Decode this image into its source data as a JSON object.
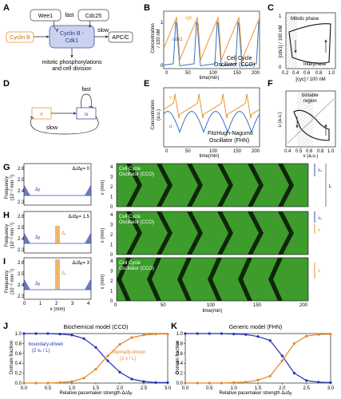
{
  "figure": {
    "panel_letters": [
      "A",
      "B",
      "C",
      "D",
      "E",
      "F",
      "G",
      "H",
      "I",
      "J",
      "K"
    ],
    "A": {
      "wee1": "Wee1",
      "cdc25": "Cdc25",
      "fast": "fast",
      "slow": "slow",
      "cyclin_b": "Cyclin B",
      "complex_line1": "Cyclin B -",
      "complex_line2": "Cdk1",
      "apcc": "APC/C",
      "outcome_line1": "mitotic phosphorylations",
      "outcome_line2": "and cell division"
    },
    "B": {
      "ylabel_line1": "Concentration",
      "ylabel_line2": "/ 100 nM",
      "xlabel": "time(min)",
      "series_cyc": "cyc",
      "series_cdk": "cdk1",
      "model_line1": "Cell Cycle",
      "model_line2": "Oscillator (CCO)",
      "xticks": [
        "0",
        "50",
        "100",
        "150",
        "200"
      ],
      "yticks": [
        "0",
        "1"
      ]
    },
    "C": {
      "ylabel": "[cdk1] / 100 nM",
      "xlabel": "[cyc] / 100 nM",
      "mitotic": "Mitotic phase",
      "interphase": "Interphase",
      "xticks": [
        "0.2",
        "0.4",
        "0.6",
        "0.8",
        "1.0"
      ],
      "yticks": [
        "0",
        "1"
      ]
    },
    "D": {
      "v": "v",
      "u": "u",
      "fast": "fast",
      "slow": "slow"
    },
    "E": {
      "ylabel_line1": "Concentration",
      "ylabel_line2": "(a.u.)",
      "xlabel": "time(min)",
      "series_v": "v",
      "series_u": "u",
      "model_line1": "FitzHugh-Nagumo",
      "model_line2": "Oscillator (FHN)",
      "xticks": [
        "0",
        "50",
        "100",
        "150",
        "200"
      ]
    },
    "F": {
      "ylabel": "u (a.u.)",
      "xlabel": "v (a.u.)",
      "region_line1": "bistable",
      "region_line2": "region",
      "xticks": [
        "0.4",
        "0.5",
        "0.6",
        "0.8",
        "1.0"
      ],
      "yticks": [
        "0.4",
        "0.6",
        "0.8",
        "1.0"
      ]
    },
    "GHI": {
      "ylabel_line1": "Frequency",
      "ylabel_line2": "(10⁻² min⁻¹)",
      "xlabel": "x (mm)",
      "kymo_xlabel": "time(min)",
      "kymo_ylabel": "x (mm)",
      "kymo_label_line1": "Cell Cycle",
      "kymo_label_line2": "Oscillator (CCO)",
      "ratios": [
        "Δᵢ/Δᵦ= 0",
        "Δᵢ/Δᵦ= 1.5",
        "Δᵢ/Δᵦ= 3"
      ],
      "delta_b": "Δᵦ",
      "delta_i": "Δᵢ",
      "freq_yticks": [
        "2.3",
        "2.4",
        "2.5",
        "2.6"
      ],
      "x_ticks": [
        "0",
        "1",
        "2",
        "3",
        "4"
      ],
      "kymo_yticks": [
        "0",
        "1",
        "2",
        "3",
        "4"
      ],
      "kymo_xticks": [
        "0",
        "50",
        "100",
        "150",
        "200"
      ],
      "side_xs": "xₛ",
      "side_L": "L",
      "side_x": "x",
      "colors": {
        "bound": "#3a50a8",
        "internal": "#e8952a",
        "kymo_bg": "#3d9c2c",
        "kymo_dark": "#0a1a06"
      }
    },
    "J": {
      "title": "Biochemical model (CCO)",
      "ylabel": "Domain fraction",
      "xlabel": "Relative pacemaker strength Δᵢ/Δᵦ",
      "blue_line1": "boundary-driven",
      "blue_line2": "(2 xₛ / L)",
      "orange_line1": "internally-driven",
      "orange_line2": "(2 x / L)"
    },
    "K": {
      "title": "Generic model (FHN)",
      "ylabel": "Domain fraction",
      "xlabel": "Relative pacemaker strength Δᵢ/Δᵦ"
    },
    "fraction_axis": {
      "yticks": [
        "0.0",
        "0.2",
        "0.4",
        "0.6",
        "0.8",
        "1.0"
      ],
      "xticks": [
        "0.0",
        "0.5",
        "1.0",
        "1.5",
        "2.0",
        "2.5",
        "3.0"
      ]
    }
  },
  "chart_data": [
    {
      "type": "line",
      "panel": "J",
      "title": "Biochemical model (CCO)",
      "xlabel": "Relative pacemaker strength Δᵢ/Δᵦ",
      "ylabel": "Domain fraction",
      "xlim": [
        0,
        3
      ],
      "ylim": [
        0,
        1
      ],
      "x": [
        0.0,
        0.25,
        0.5,
        0.75,
        1.0,
        1.25,
        1.5,
        1.75,
        2.0,
        2.25,
        2.5,
        2.75,
        3.0
      ],
      "series": [
        {
          "name": "boundary-driven (2 xₛ / L)",
          "color": "#2431b5",
          "values": [
            1.0,
            1.0,
            1.0,
            0.99,
            0.97,
            0.9,
            0.72,
            0.45,
            0.22,
            0.08,
            0.03,
            0.01,
            0.01
          ]
        },
        {
          "name": "internally-driven (2 x / L)",
          "color": "#e8852a",
          "values": [
            0.0,
            0.0,
            0.0,
            0.01,
            0.03,
            0.1,
            0.28,
            0.55,
            0.78,
            0.92,
            0.97,
            0.99,
            0.99
          ]
        }
      ]
    },
    {
      "type": "line",
      "panel": "K",
      "title": "Generic model (FHN)",
      "xlabel": "Relative pacemaker strength Δᵢ/Δᵦ",
      "ylabel": "Domain fraction",
      "xlim": [
        0,
        3
      ],
      "ylim": [
        0,
        1
      ],
      "x": [
        0.0,
        0.25,
        0.5,
        0.75,
        1.0,
        1.25,
        1.5,
        1.75,
        2.0,
        2.25,
        2.5,
        2.75,
        3.0
      ],
      "series": [
        {
          "name": "boundary-driven",
          "color": "#2431b5",
          "values": [
            1.0,
            1.0,
            1.0,
            1.0,
            0.99,
            0.98,
            0.94,
            0.86,
            0.55,
            0.2,
            0.05,
            0.02,
            0.01
          ]
        },
        {
          "name": "internally-driven",
          "color": "#e8852a",
          "values": [
            0.0,
            0.0,
            0.0,
            0.0,
            0.01,
            0.02,
            0.06,
            0.14,
            0.45,
            0.8,
            0.95,
            0.98,
            0.99
          ]
        }
      ]
    }
  ]
}
